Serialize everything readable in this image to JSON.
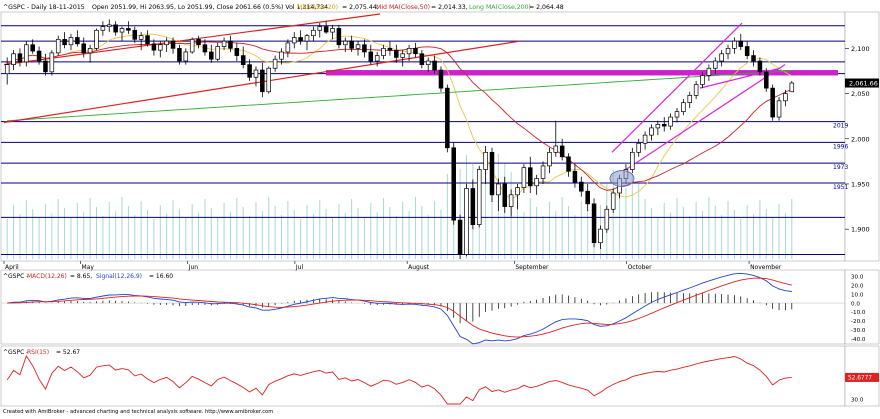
{
  "header": {
    "symbol": "^GSPC - Daily 18-11-2015",
    "ohlc": "Open 2051.99, Hi 2063.95, Lo 2051.99, Close 2061.66 (0.5%) Vol 1,314,734",
    "ma200_label": "MA(Close,20)",
    "ma200_value": "= 2,075.44,",
    "mid_ma_label": "Mid MA(Close,50)",
    "mid_ma_value": "= 2,014.33,",
    "long_ma_label": "Long MA(Close,200)",
    "long_ma_value": "= 2,064.48"
  },
  "colors": {
    "price_up": "#ffffff",
    "price_down": "#000000",
    "ma20": "#e8c84a",
    "ma50": "#cc2222",
    "ma200": "#33aa33",
    "trendline": "#dd2222",
    "channel": "#dd22dd",
    "resistance_band": "#cc22cc",
    "hline": "#000080",
    "volume": "#a8d8d0",
    "macd": "#2244cc",
    "signal": "#dd2222",
    "rsi": "#dd2222",
    "highlight_ellipse": "#8899cc"
  },
  "price_axis": {
    "ticks": [
      "2,100",
      "2,050",
      "2,000",
      "1,950",
      "1,900"
    ],
    "current_price": "2,061.66",
    "level_labels": [
      "2019",
      "1996",
      "1973",
      "1951"
    ]
  },
  "months": [
    "April",
    "May",
    "Jun",
    "Jul",
    "August",
    "September",
    "October",
    "November"
  ],
  "macd": {
    "label_prefix": "^GSPC - ",
    "macd_label": "MACD(12,26)",
    "macd_value": "= 8.65,",
    "signal_label": "Signal(12,26,9)",
    "signal_value": "= 16.60",
    "ticks": [
      "30.0",
      "20.0",
      "10.0",
      "0.0",
      "-10.0",
      "-20.0",
      "-30.0",
      "-40.0"
    ]
  },
  "rsi": {
    "label_prefix": "^GSPC - ",
    "rsi_label": "RSI(15)",
    "rsi_value": "= 52.67",
    "current": "52.6777",
    "ticks": [
      "30.0"
    ]
  },
  "footer": "Created with AmiBroker - advanced charting and technical analysis software. http://www.amibroker.com",
  "chart_data": {
    "type": "candlestick",
    "title": "^GSPC - Daily 18-11-2015",
    "ylim": [
      1867,
      2138
    ],
    "horizontal_levels": [
      2125,
      2108,
      2085,
      2072,
      2019,
      1996,
      1973,
      1951,
      1913,
      1872
    ],
    "resistance_zone": [
      2070,
      2076
    ],
    "candles": [
      [
        2072,
        2090,
        2060,
        2082
      ],
      [
        2082,
        2098,
        2076,
        2094
      ],
      [
        2094,
        2100,
        2080,
        2085
      ],
      [
        2085,
        2108,
        2080,
        2104
      ],
      [
        2104,
        2110,
        2094,
        2097
      ],
      [
        2097,
        2102,
        2082,
        2086
      ],
      [
        2086,
        2094,
        2070,
        2074
      ],
      [
        2074,
        2098,
        2070,
        2095
      ],
      [
        2095,
        2114,
        2092,
        2110
      ],
      [
        2110,
        2118,
        2100,
        2104
      ],
      [
        2104,
        2116,
        2098,
        2112
      ],
      [
        2112,
        2120,
        2102,
        2105
      ],
      [
        2105,
        2112,
        2090,
        2095
      ],
      [
        2095,
        2104,
        2084,
        2100
      ],
      [
        2100,
        2122,
        2098,
        2120
      ],
      [
        2120,
        2130,
        2114,
        2124
      ],
      [
        2124,
        2132,
        2118,
        2126
      ],
      [
        2126,
        2130,
        2114,
        2118
      ],
      [
        2118,
        2124,
        2108,
        2122
      ],
      [
        2122,
        2130,
        2116,
        2120
      ],
      [
        2120,
        2124,
        2106,
        2110
      ],
      [
        2110,
        2118,
        2098,
        2114
      ],
      [
        2114,
        2120,
        2102,
        2105
      ],
      [
        2105,
        2110,
        2092,
        2098
      ],
      [
        2098,
        2108,
        2090,
        2104
      ],
      [
        2104,
        2112,
        2096,
        2108
      ],
      [
        2108,
        2112,
        2094,
        2100
      ],
      [
        2100,
        2104,
        2082,
        2086
      ],
      [
        2086,
        2100,
        2082,
        2096
      ],
      [
        2096,
        2112,
        2094,
        2110
      ],
      [
        2110,
        2114,
        2100,
        2104
      ],
      [
        2104,
        2110,
        2092,
        2096
      ],
      [
        2096,
        2104,
        2084,
        2088
      ],
      [
        2088,
        2106,
        2086,
        2102
      ],
      [
        2102,
        2112,
        2098,
        2108
      ],
      [
        2108,
        2114,
        2096,
        2100
      ],
      [
        2100,
        2106,
        2086,
        2092
      ],
      [
        2092,
        2102,
        2078,
        2082
      ],
      [
        2082,
        2088,
        2064,
        2068
      ],
      [
        2068,
        2080,
        2058,
        2076
      ],
      [
        2076,
        2084,
        2046,
        2052
      ],
      [
        2052,
        2080,
        2050,
        2078
      ],
      [
        2078,
        2092,
        2074,
        2088
      ],
      [
        2088,
        2100,
        2082,
        2096
      ],
      [
        2096,
        2110,
        2090,
        2106
      ],
      [
        2106,
        2118,
        2100,
        2112
      ],
      [
        2112,
        2120,
        2104,
        2108
      ],
      [
        2108,
        2116,
        2098,
        2114
      ],
      [
        2114,
        2124,
        2108,
        2120
      ],
      [
        2120,
        2128,
        2112,
        2124
      ],
      [
        2124,
        2130,
        2116,
        2118
      ],
      [
        2118,
        2126,
        2110,
        2122
      ],
      [
        2122,
        2126,
        2100,
        2104
      ],
      [
        2104,
        2112,
        2096,
        2108
      ],
      [
        2108,
        2114,
        2096,
        2100
      ],
      [
        2100,
        2108,
        2092,
        2104
      ],
      [
        2104,
        2110,
        2090,
        2096
      ],
      [
        2096,
        2104,
        2082,
        2086
      ],
      [
        2086,
        2096,
        2080,
        2092
      ],
      [
        2092,
        2104,
        2088,
        2100
      ],
      [
        2100,
        2108,
        2092,
        2098
      ],
      [
        2098,
        2104,
        2084,
        2090
      ],
      [
        2090,
        2098,
        2080,
        2094
      ],
      [
        2094,
        2104,
        2086,
        2100
      ],
      [
        2100,
        2106,
        2090,
        2094
      ],
      [
        2094,
        2098,
        2078,
        2082
      ],
      [
        2082,
        2090,
        2074,
        2086
      ],
      [
        2086,
        2092,
        2072,
        2076
      ],
      [
        2076,
        2080,
        2052,
        2056
      ],
      [
        2056,
        2060,
        1985,
        1990
      ],
      [
        1990,
        1996,
        1905,
        1910
      ],
      [
        1910,
        1916,
        1867,
        1872
      ],
      [
        1872,
        1950,
        1870,
        1945
      ],
      [
        1945,
        1955,
        1900,
        1905
      ],
      [
        1905,
        1970,
        1902,
        1966
      ],
      [
        1966,
        1992,
        1950,
        1985
      ],
      [
        1985,
        1990,
        1930,
        1938
      ],
      [
        1938,
        1956,
        1920,
        1950
      ],
      [
        1950,
        1958,
        1918,
        1925
      ],
      [
        1925,
        1944,
        1914,
        1938
      ],
      [
        1938,
        1950,
        1922,
        1946
      ],
      [
        1946,
        1972,
        1940,
        1968
      ],
      [
        1968,
        1980,
        1940,
        1948
      ],
      [
        1948,
        1960,
        1938,
        1956
      ],
      [
        1956,
        1975,
        1950,
        1970
      ],
      [
        1970,
        1990,
        1962,
        1985
      ],
      [
        1985,
        2020,
        1980,
        1992
      ],
      [
        1992,
        2000,
        1976,
        1980
      ],
      [
        1980,
        1984,
        1958,
        1964
      ],
      [
        1964,
        1972,
        1946,
        1952
      ],
      [
        1952,
        1958,
        1936,
        1942
      ],
      [
        1942,
        1950,
        1920,
        1928
      ],
      [
        1928,
        1934,
        1880,
        1885
      ],
      [
        1885,
        1904,
        1878,
        1900
      ],
      [
        1900,
        1926,
        1896,
        1922
      ],
      [
        1922,
        1945,
        1918,
        1940
      ],
      [
        1940,
        1960,
        1934,
        1956
      ],
      [
        1956,
        1972,
        1950,
        1966
      ],
      [
        1966,
        1990,
        1962,
        1985
      ],
      [
        1985,
        2000,
        1980,
        1995
      ],
      [
        1995,
        2008,
        1988,
        2004
      ],
      [
        2004,
        2016,
        1998,
        2012
      ],
      [
        2012,
        2020,
        2004,
        2016
      ],
      [
        2016,
        2024,
        2008,
        2014
      ],
      [
        2014,
        2028,
        2010,
        2024
      ],
      [
        2024,
        2034,
        2018,
        2030
      ],
      [
        2030,
        2044,
        2026,
        2040
      ],
      [
        2040,
        2052,
        2034,
        2048
      ],
      [
        2048,
        2064,
        2044,
        2060
      ],
      [
        2060,
        2074,
        2056,
        2070
      ],
      [
        2070,
        2082,
        2064,
        2078
      ],
      [
        2078,
        2090,
        2072,
        2086
      ],
      [
        2086,
        2098,
        2080,
        2094
      ],
      [
        2094,
        2104,
        2088,
        2100
      ],
      [
        2100,
        2112,
        2094,
        2108
      ],
      [
        2108,
        2116,
        2098,
        2102
      ],
      [
        2102,
        2108,
        2088,
        2092
      ],
      [
        2092,
        2098,
        2080,
        2086
      ],
      [
        2086,
        2090,
        2070,
        2074
      ],
      [
        2074,
        2078,
        2052,
        2056
      ],
      [
        2056,
        2060,
        2020,
        2024
      ],
      [
        2024,
        2046,
        2020,
        2042
      ],
      [
        2042,
        2054,
        2036,
        2050
      ],
      [
        2051.99,
        2063.95,
        2051.99,
        2061.66
      ]
    ],
    "rsi_current": 52.67,
    "macd_current": 8.65,
    "signal_current": 16.6
  }
}
